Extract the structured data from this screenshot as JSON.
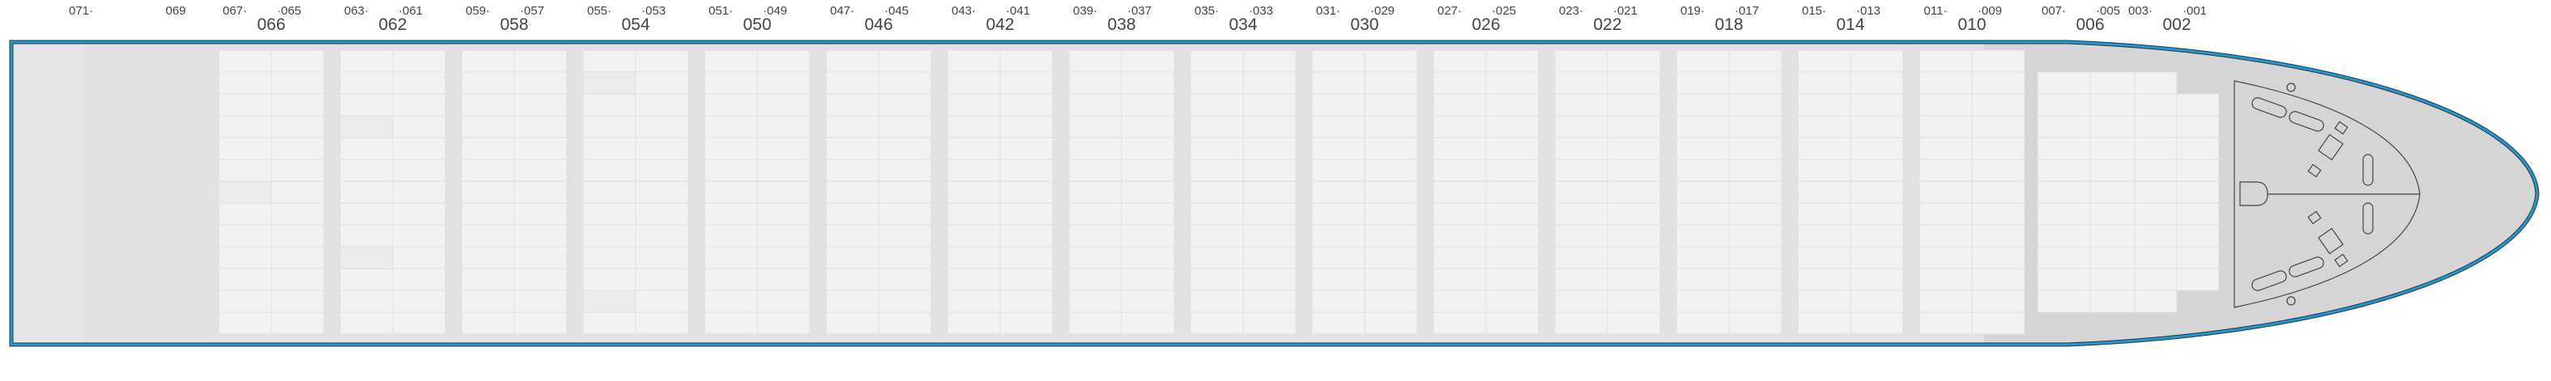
{
  "plan": {
    "extra_labels": [
      {
        "id": "071",
        "text": "071·"
      },
      {
        "id": "069",
        "text": "069"
      }
    ],
    "bays": [
      {
        "bay": "066",
        "aft": "067·",
        "fwd": "·065",
        "rows": 13,
        "highlighted": [
          [
            6,
            0
          ]
        ]
      },
      {
        "bay": "062",
        "aft": "063·",
        "fwd": "·061",
        "rows": 13,
        "highlighted": [
          [
            3,
            0
          ],
          [
            9,
            0
          ]
        ]
      },
      {
        "bay": "058",
        "aft": "059·",
        "fwd": "·057",
        "rows": 13,
        "highlighted": []
      },
      {
        "bay": "054",
        "aft": "055·",
        "fwd": "·053",
        "rows": 13,
        "highlighted": [
          [
            1,
            0
          ],
          [
            11,
            0
          ]
        ]
      },
      {
        "bay": "050",
        "aft": "051·",
        "fwd": "·049",
        "rows": 13,
        "highlighted": []
      },
      {
        "bay": "046",
        "aft": "047·",
        "fwd": "·045",
        "rows": 13,
        "highlighted": []
      },
      {
        "bay": "042",
        "aft": "043·",
        "fwd": "·041",
        "rows": 13,
        "highlighted": []
      },
      {
        "bay": "038",
        "aft": "039·",
        "fwd": "·037",
        "rows": 13,
        "highlighted": []
      },
      {
        "bay": "034",
        "aft": "035·",
        "fwd": "·033",
        "rows": 13,
        "highlighted": []
      },
      {
        "bay": "030",
        "aft": "031·",
        "fwd": "·029",
        "rows": 13,
        "highlighted": []
      },
      {
        "bay": "026",
        "aft": "027·",
        "fwd": "·025",
        "rows": 13,
        "highlighted": []
      },
      {
        "bay": "022",
        "aft": "023·",
        "fwd": "·021",
        "rows": 13,
        "highlighted": []
      },
      {
        "bay": "018",
        "aft": "019·",
        "fwd": "·017",
        "rows": 13,
        "highlighted": []
      },
      {
        "bay": "014",
        "aft": "015·",
        "fwd": "·013",
        "rows": 13,
        "highlighted": []
      },
      {
        "bay": "010",
        "aft": "011·",
        "fwd": "·009",
        "rows": 13,
        "highlighted": []
      },
      {
        "bay": "006",
        "aft": "007·",
        "fwd": "·005",
        "rows": 11,
        "highlighted": []
      },
      {
        "bay": "002",
        "aft": "003·",
        "fwd": "·001",
        "rows": 11,
        "fwd_rows": 9,
        "highlighted": []
      }
    ],
    "colors": {
      "hull_outline": "#1a9ad6",
      "hull_fill": "#e2e2e2",
      "bow_fill": "#d5d5d5",
      "slot_empty": "#f2f2f2"
    }
  }
}
